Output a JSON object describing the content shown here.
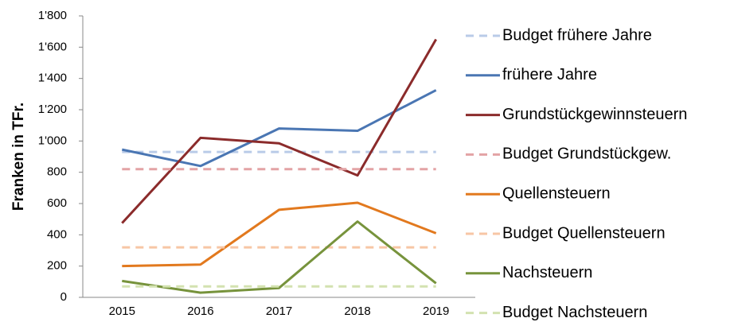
{
  "chart_data": {
    "type": "line",
    "ylabel": "Franken in TFr.",
    "categories": [
      "2015",
      "2016",
      "2017",
      "2018",
      "2019"
    ],
    "ylim": [
      0,
      1800
    ],
    "yticks": [
      0,
      200,
      400,
      600,
      800,
      {
        "value": 1000,
        "label": "1'000"
      },
      {
        "value": 1200,
        "label": "1'200"
      },
      {
        "value": 1400,
        "label": "1'400"
      },
      {
        "value": 1600,
        "label": "1'600"
      },
      {
        "value": 1800,
        "label": "1'800"
      }
    ],
    "legend": "right",
    "series": [
      {
        "name": "Budget frühere Jahre",
        "color": "#b9cbe8",
        "dashed": true,
        "values": [
          930,
          930,
          930,
          930,
          930
        ]
      },
      {
        "name": "frühere Jahre",
        "color": "#4a76b3",
        "values": [
          945,
          840,
          1080,
          1065,
          1325
        ]
      },
      {
        "name": "Grundstückgewinnsteuern",
        "color": "#8b2b2b",
        "values": [
          475,
          1020,
          985,
          780,
          1650
        ]
      },
      {
        "name": "Budget Grundstückgew.",
        "color": "#e3a3a5",
        "dashed": true,
        "values": [
          820,
          820,
          820,
          820,
          820
        ]
      },
      {
        "name": "Quellensteuern",
        "color": "#e2791e",
        "values": [
          200,
          210,
          560,
          605,
          410
        ]
      },
      {
        "name": "Budget Quellensteuern",
        "color": "#f7c6a5",
        "dashed": true,
        "values": [
          320,
          320,
          320,
          320,
          320
        ]
      },
      {
        "name": "Nachsteuern",
        "color": "#77933c",
        "values": [
          105,
          30,
          60,
          485,
          90
        ]
      },
      {
        "name": "Budget Nachsteuern",
        "color": "#d3e2b0",
        "dashed": true,
        "values": [
          70,
          70,
          70,
          70,
          70
        ]
      }
    ]
  }
}
